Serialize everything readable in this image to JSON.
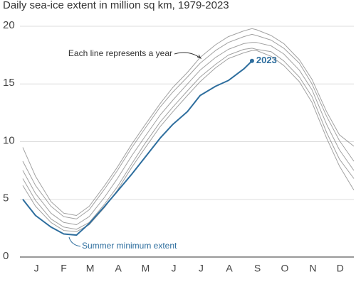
{
  "chart_data": {
    "type": "line",
    "title": "Daily sea-ice extent in million sq km, 1979-2023",
    "annotations": [
      "Each line represents a year",
      "Summer minimum extent"
    ],
    "x": [
      1,
      15,
      32,
      46,
      60,
      74,
      91,
      105,
      121,
      135,
      152,
      166,
      182,
      196,
      213,
      227,
      244,
      253,
      258,
      274,
      288,
      305,
      319,
      335,
      349,
      365
    ],
    "xlim": [
      1,
      365
    ],
    "xticks": [
      {
        "value": 16,
        "label": "J"
      },
      {
        "value": 46,
        "label": "F"
      },
      {
        "value": 75,
        "label": "M"
      },
      {
        "value": 106,
        "label": "A"
      },
      {
        "value": 136,
        "label": "M"
      },
      {
        "value": 167,
        "label": "J"
      },
      {
        "value": 197,
        "label": "J"
      },
      {
        "value": 228,
        "label": "A"
      },
      {
        "value": 259,
        "label": "S"
      },
      {
        "value": 289,
        "label": "O"
      },
      {
        "value": 320,
        "label": "N"
      },
      {
        "value": 350,
        "label": "D"
      }
    ],
    "ylim": [
      0,
      20
    ],
    "yticks": [
      0,
      5,
      10,
      15,
      20
    ],
    "grid": true,
    "series": [
      {
        "color": "#555555",
        "values": [
          7.5,
          5.5,
          3.8,
          3.0,
          2.8,
          3.5,
          5.2,
          6.8,
          8.8,
          10.4,
          12.3,
          13.6,
          15.0,
          16.2,
          17.3,
          18.0,
          18.5,
          18.6,
          18.6,
          18.3,
          17.6,
          16.2,
          14.5,
          11.5,
          9.3,
          7.5
        ]
      },
      {
        "color": "#555555",
        "values": [
          8.3,
          6.2,
          4.4,
          3.5,
          3.3,
          4.1,
          5.9,
          7.5,
          9.5,
          11.1,
          13.0,
          14.3,
          15.6,
          16.8,
          17.9,
          18.6,
          19.1,
          19.3,
          19.2,
          18.8,
          18.1,
          16.8,
          15.0,
          12.2,
          10.1,
          8.3
        ]
      },
      {
        "color": "#555555",
        "values": [
          6.8,
          4.9,
          3.3,
          2.6,
          2.4,
          3.0,
          4.6,
          6.1,
          8.1,
          9.8,
          11.7,
          13.0,
          14.4,
          15.6,
          16.7,
          17.5,
          18.0,
          18.1,
          18.0,
          17.8,
          17.0,
          15.6,
          13.9,
          10.8,
          8.5,
          6.8
        ]
      },
      {
        "color": "#555555",
        "values": [
          9.5,
          7.0,
          4.8,
          3.8,
          3.6,
          4.4,
          6.2,
          7.8,
          9.8,
          11.4,
          13.3,
          14.7,
          16.0,
          17.3,
          18.4,
          19.1,
          19.6,
          19.8,
          19.7,
          19.2,
          18.5,
          17.1,
          15.4,
          12.6,
          10.6,
          9.6
        ]
      },
      {
        "color": "#555555",
        "values": [
          6.2,
          4.4,
          3.0,
          2.3,
          2.2,
          2.8,
          4.3,
          5.8,
          7.8,
          9.4,
          11.3,
          12.6,
          14.0,
          15.2,
          16.4,
          17.2,
          17.7,
          17.9,
          17.9,
          17.4,
          16.6,
          15.2,
          13.4,
          10.3,
          7.9,
          5.8
        ]
      },
      {
        "name": "2023",
        "color": "#2e6e9e",
        "values": [
          5.0,
          3.6,
          2.6,
          2.0,
          1.9,
          2.9,
          4.4,
          5.7,
          7.2,
          8.6,
          10.3,
          11.5,
          12.6,
          14.0,
          14.8,
          15.3,
          16.3,
          17.0,
          null,
          null,
          null,
          null,
          null,
          null,
          null,
          null
        ]
      }
    ]
  }
}
